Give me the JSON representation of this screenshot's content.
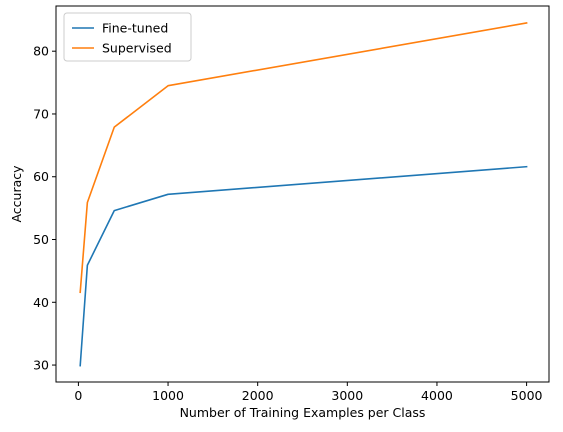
{
  "chart_data": {
    "type": "line",
    "title": "",
    "xlabel": "Number of Training Examples per Class",
    "ylabel": "Accuracy",
    "xlim": [
      -250,
      5250
    ],
    "ylim": [
      27.3,
      87.2
    ],
    "xticks": [
      0,
      1000,
      2000,
      3000,
      4000,
      5000
    ],
    "yticks": [
      30,
      40,
      50,
      60,
      70,
      80
    ],
    "grid": false,
    "legend_position": "top-left",
    "series": [
      {
        "name": "Fine-tuned",
        "color": "#1f77b4",
        "x": [
          20,
          100,
          400,
          1000,
          5000
        ],
        "y": [
          29.9,
          45.9,
          54.6,
          57.2,
          61.6
        ]
      },
      {
        "name": "Supervised",
        "color": "#ff7f0e",
        "x": [
          20,
          100,
          400,
          1000,
          5000
        ],
        "y": [
          41.6,
          55.9,
          67.9,
          74.5,
          84.5
        ]
      }
    ]
  }
}
